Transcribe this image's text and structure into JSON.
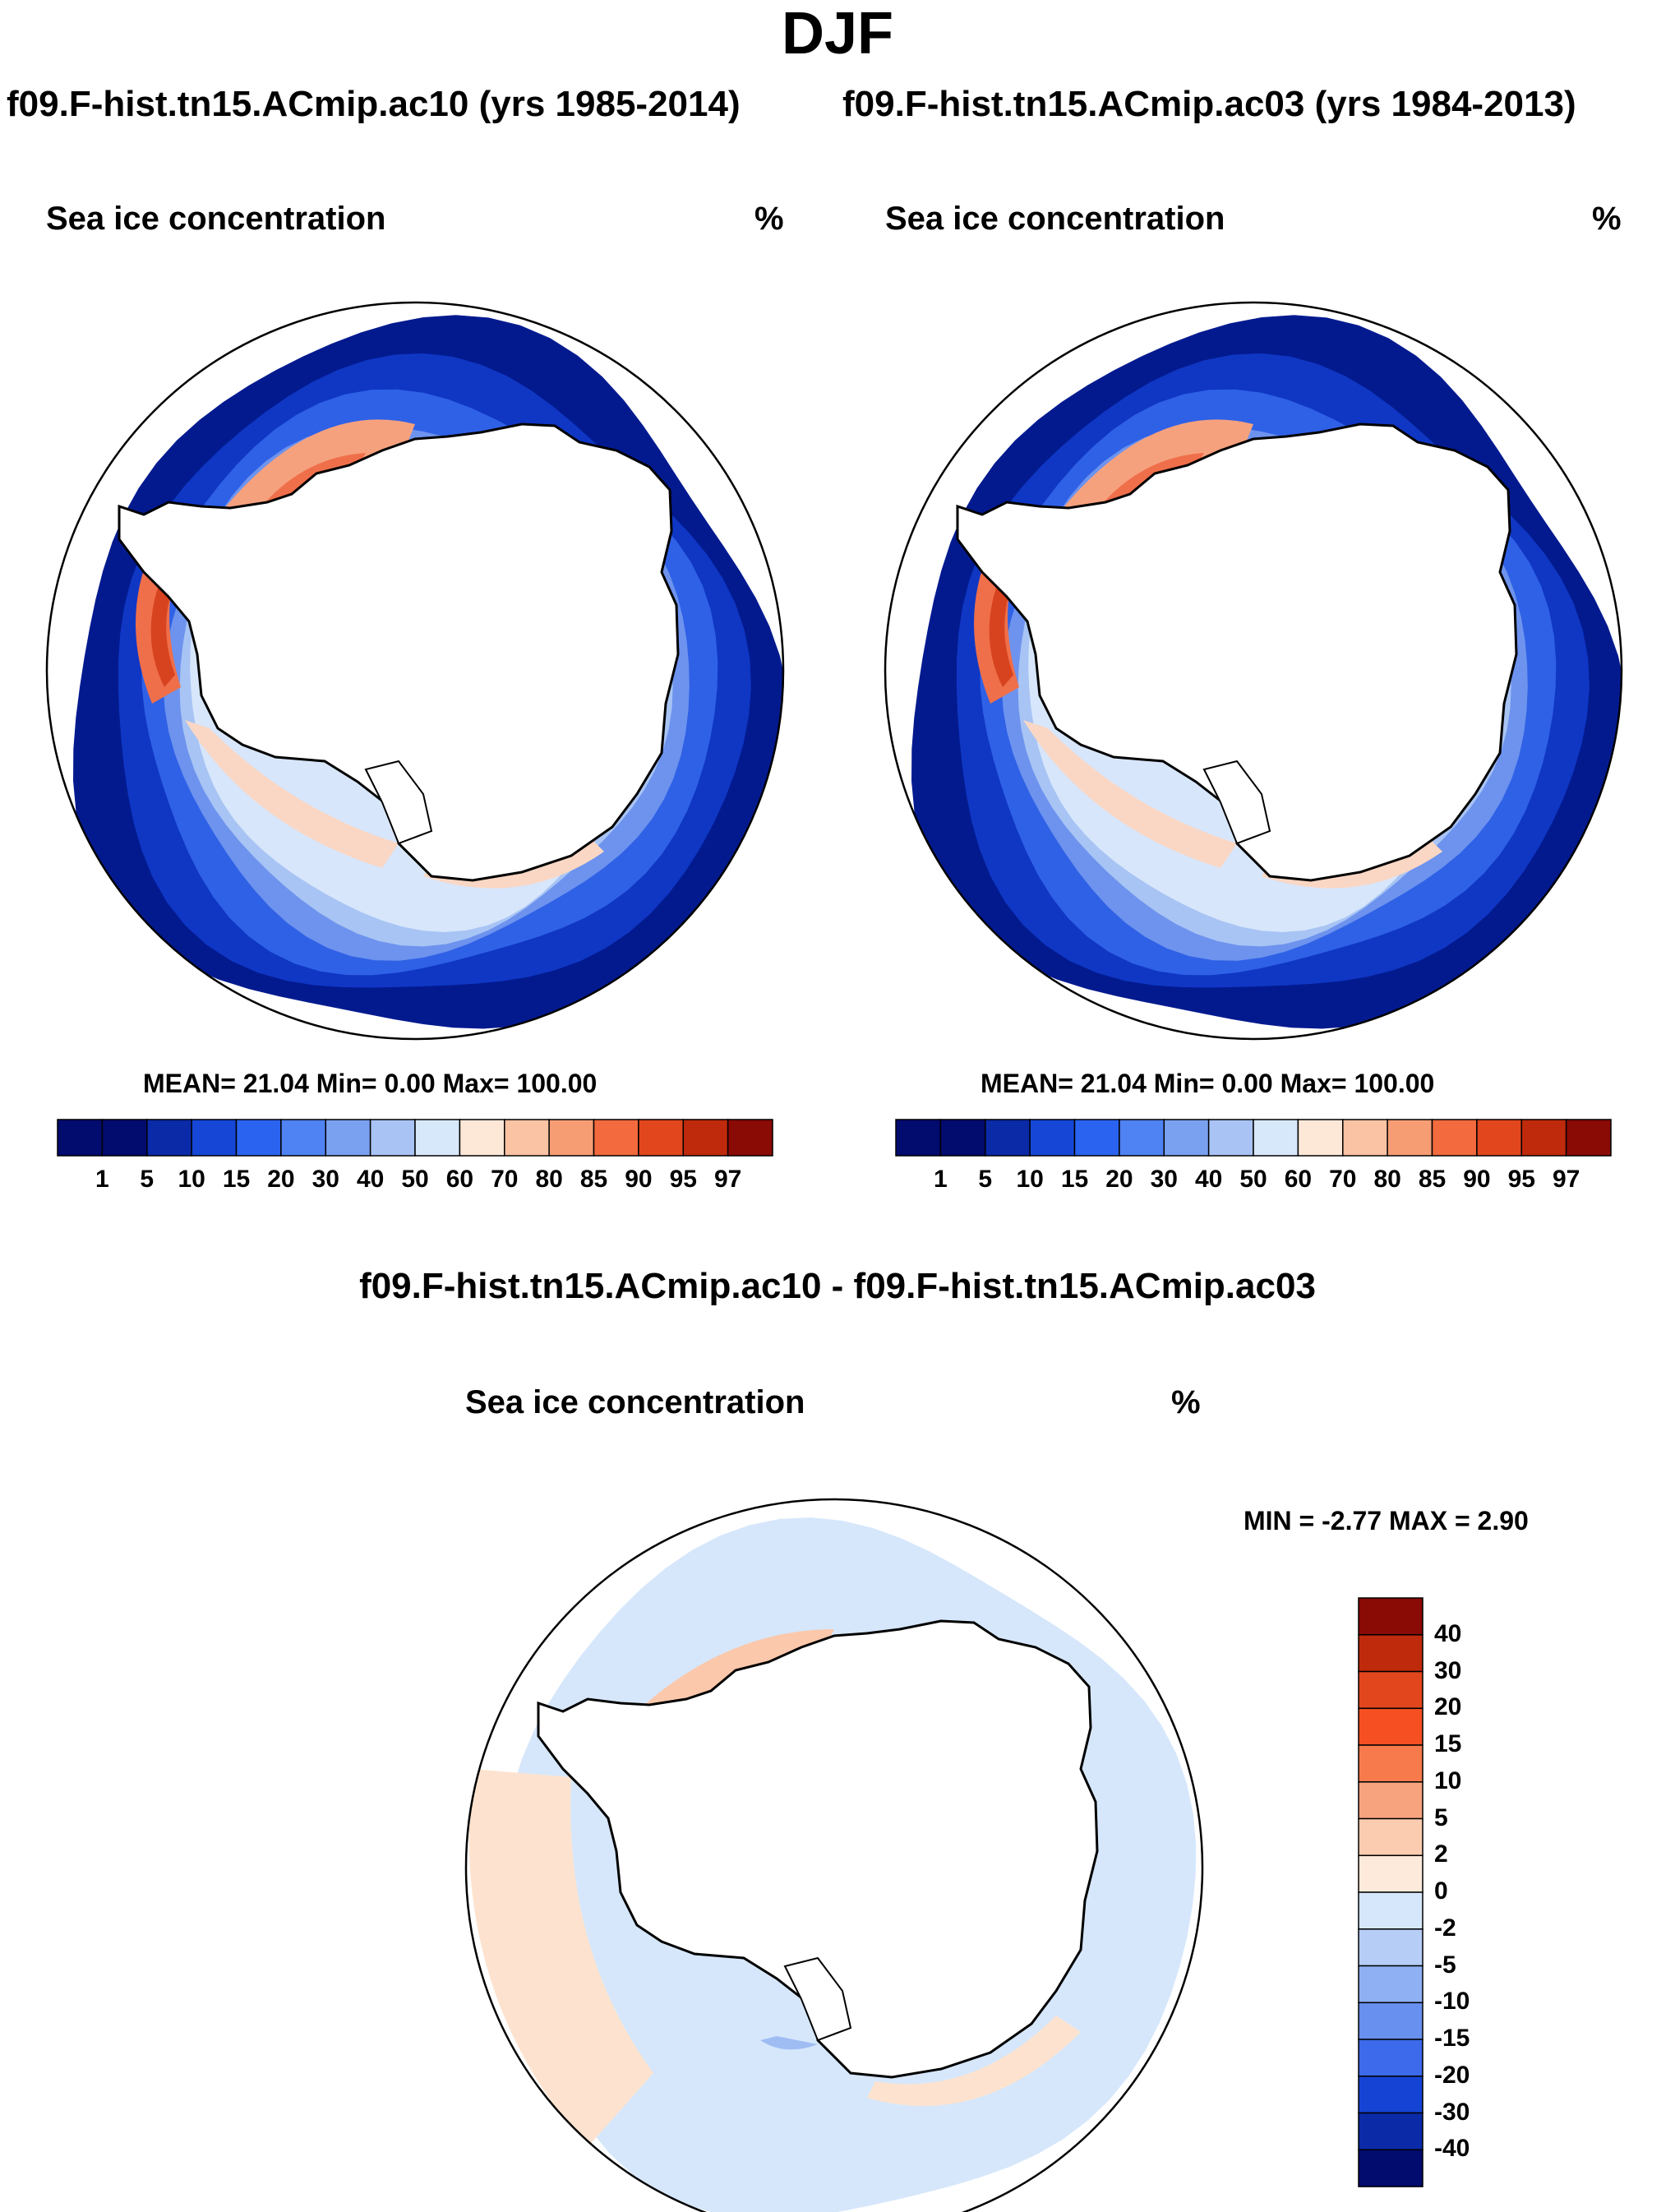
{
  "figure": {
    "title": "DJF",
    "run_a_label": "f09.F-hist.tn15.ACmip.ac10 (yrs 1985-2014)",
    "run_b_label": "f09.F-hist.tn15.ACmip.ac03 (yrs 1984-2013)",
    "diff_label": "f09.F-hist.tn15.ACmip.ac10 - f09.F-hist.tn15.ACmip.ac03"
  },
  "panels": [
    {
      "variable": "Sea ice concentration",
      "units": "%",
      "stats": "MEAN=  21.04  Min=    0.00  Max= 100.00"
    },
    {
      "variable": "Sea ice concentration",
      "units": "%",
      "stats": "MEAN=  21.04  Min=    0.00  Max= 100.00"
    },
    {
      "variable": "Sea ice concentration",
      "units": "%",
      "stats": "MIN =  -2.77 MAX =   2.90"
    }
  ],
  "colorbar_abs": {
    "labels": [
      "1",
      "5",
      "10",
      "15",
      "20",
      "30",
      "40",
      "50",
      "60",
      "70",
      "80",
      "85",
      "90",
      "95",
      "97"
    ],
    "colors": [
      "#020b6e",
      "#0a2aa8",
      "#1546d6",
      "#2a63ef",
      "#4f82f2",
      "#7aa0f0",
      "#a9c3f5",
      "#d8e8fb",
      "#fde8d8",
      "#f9c3a4",
      "#f69d74",
      "#f26a3e",
      "#e2461d",
      "#bf2a0c",
      "#8a0a05"
    ]
  },
  "colorbar_diff": {
    "labels": [
      "40",
      "30",
      "20",
      "15",
      "10",
      "5",
      "2",
      "0",
      "-2",
      "-5",
      "-10",
      "-15",
      "-20",
      "-30",
      "-40"
    ],
    "colors_top_to_bottom": [
      "#8a0a05",
      "#bf2a0c",
      "#e2461d",
      "#f65022",
      "#f67a4c",
      "#f7a37e",
      "#fcccb0",
      "#fdeadb",
      "#d6e7fb",
      "#b6cdf6",
      "#8fb0f2",
      "#6890ee",
      "#3d6aea",
      "#1544d4",
      "#0a2aa8",
      "#020b6e"
    ]
  },
  "map_colors": {
    "outer": "#031a8f",
    "ring2": "#0f37c4",
    "ring3": "#2f61e6",
    "ring4": "#6d93ee",
    "ring5": "#a8c4f4",
    "ring6": "#d7e6fb",
    "warm1": "#fad7c4",
    "warm2": "#f6a17e",
    "warm3": "#ef6f4a",
    "warm4": "#d8431f",
    "diff_neg": "#d6e7fb",
    "diff_pos": "#fde3cf",
    "diff_pos2": "#fbc8ab",
    "diff_neg2": "#9fbdf3"
  }
}
